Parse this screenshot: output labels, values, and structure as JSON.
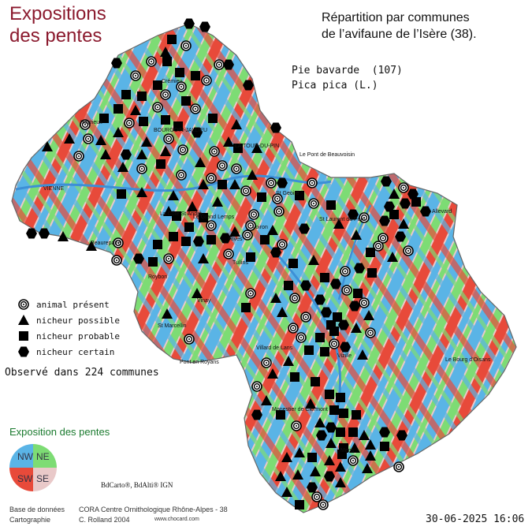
{
  "header": {
    "map_title_line1": "Expositions",
    "map_title_line2": "des pentes",
    "heading_line1": "Répartition par communes",
    "heading_line2": "de l’avifaune de l’Isère (38)."
  },
  "species": {
    "common_name": "Pie bavarde  (107)",
    "latin_name": "Pica pica (L.)"
  },
  "legend": {
    "items": [
      {
        "symbol": "circle-target",
        "label": "animal présent"
      },
      {
        "symbol": "triangle",
        "label": "nicheur possible"
      },
      {
        "symbol": "square",
        "label": "nicheur probable"
      },
      {
        "symbol": "hexagon",
        "label": "nicheur certain"
      }
    ]
  },
  "observed": "Observé dans 224 communes",
  "exposition": {
    "title": "Exposition des pentes",
    "quadrants": [
      {
        "label": "NW",
        "color": "#5ab4e6"
      },
      {
        "label": "NE",
        "color": "#7ddc74"
      },
      {
        "label": "SW",
        "color": "#e84a3a"
      },
      {
        "label": "SE",
        "color": "#e9c9c9"
      }
    ]
  },
  "credits": {
    "bdcarto": "BdCarto®, BdAlti® IGN",
    "db_label": "Base de données",
    "db_value": "CORA Centre Ornithologique Rhône-Alpes - 38",
    "carto_label": "Cartographie",
    "carto_value": "C. Rolland 2004",
    "url": "www.chocard.com"
  },
  "date": "30-06-2025 16:06",
  "towns": [
    "VIENNE",
    "BOURGOIN-JALLIEU",
    "LA TOUR-DU-PIN",
    "Le Pont de Beauvoisin",
    "St Geoire",
    "La Côte St André",
    "Le Grand Lemps",
    "Rives",
    "Voiron",
    "Tullins",
    "St Laurent du Pont",
    "St Marcellin",
    "Pont en Royans",
    "Vinay",
    "Vizille",
    "Villard de Lans",
    "Mens",
    "Le Bourg d'Oisans",
    "Monestier de Clermont",
    "Allevard",
    "Crémieu",
    "Roybon",
    "Beaurepaire",
    "Heyrieux"
  ],
  "colors": {
    "relief_nw": "#5ab4e6",
    "relief_ne": "#7ddc74",
    "relief_sw": "#e84a3a",
    "relief_se": "#e9c9c9",
    "title": "#8b1a2e",
    "expo_title": "#1a7a2e"
  }
}
